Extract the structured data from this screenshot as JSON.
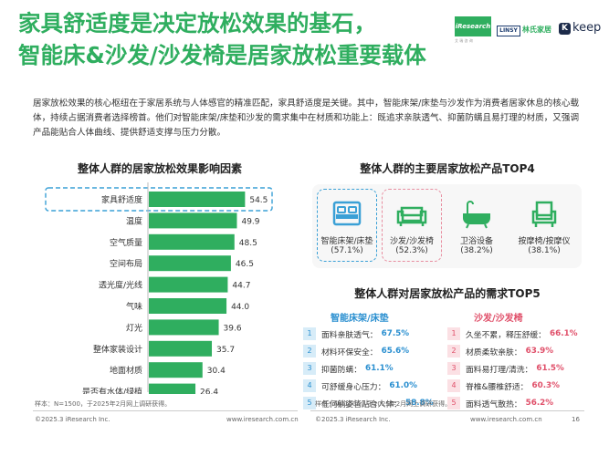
{
  "title": {
    "line1": "家具舒适度是决定放松效果的基石，",
    "line2": "智能床&沙发/沙发椅是居家放松重要载体"
  },
  "logos": {
    "iresearch": "iResearch",
    "iresearch_sub": "艾 瑞 咨 询",
    "linsy": "LINSY",
    "linshi": "林氏家居",
    "keep_k": "K",
    "keep": "keep"
  },
  "intro": "居家放松效果的核心枢纽在于家居系统与人体感官的精准匹配，家具舒适度是关键。其中，智能床架/床垫与沙发作为消费者居家休息的核心载体，持续占据消费者选择榜首。他们对智能床架/床垫和沙发的需求集中在材质和功能上：既追求亲肤透气、抑菌防螨且易打理的材质，又强调产品能贴合人体曲线、提供舒适支撑与压力分散。",
  "left_section": {
    "title": "整体人群的居家放松效果影响因素",
    "source": "样本：N=1500，于2025年2月网上调研获得。"
  },
  "chart_data": {
    "type": "bar",
    "orientation": "horizontal",
    "title": "整体人群的居家放松效果影响因素",
    "categories": [
      "家具舒适度",
      "温度",
      "空气质量",
      "空间布局",
      "透光度/光线",
      "气味",
      "灯光",
      "整体家装设计",
      "地面材质",
      "是否有水体/绿植"
    ],
    "values": [
      54.5,
      49.9,
      48.5,
      46.5,
      44.7,
      44.0,
      39.6,
      35.7,
      30.4,
      26.4
    ],
    "value_labels": [
      "54.5",
      "49.9",
      "48.5",
      "46.5",
      "44.7",
      "44.0",
      "39.6",
      "35.7",
      "30.4",
      "26.4"
    ],
    "highlight_index": 0,
    "xlim": [
      0,
      60
    ],
    "color": "#2fae5f",
    "grid": false
  },
  "top4": {
    "title": "整体人群的主要居家放松产品TOP4",
    "items": [
      {
        "label": "智能床架/床垫",
        "pct": "(57.1%)",
        "icon": "bed-icon"
      },
      {
        "label": "沙发/沙发椅",
        "pct": "(52.3%)",
        "icon": "sofa-icon"
      },
      {
        "label": "卫浴设备",
        "pct": "(38.2%)",
        "icon": "bathtub-icon"
      },
      {
        "label": "按摩椅/按摩仪",
        "pct": "(38.1%)",
        "icon": "massage-chair-icon"
      }
    ]
  },
  "top5": {
    "title": "整体人群对居家放松产品的需求TOP5",
    "bed": {
      "head": "智能床架/床垫",
      "color": "#2a8fd0",
      "rows": [
        {
          "num": "1",
          "text": "面料亲肤透气：",
          "value": "67.5%"
        },
        {
          "num": "2",
          "text": "材料环保安全：",
          "value": "65.6%"
        },
        {
          "num": "3",
          "text": "抑菌防螨：",
          "value": "61.1%"
        },
        {
          "num": "4",
          "text": "可舒缓身心压力：",
          "value": "61.0%"
        },
        {
          "num": "5",
          "text": "任何躺姿皆贴合人体：",
          "value": "58.8%"
        }
      ]
    },
    "sofa": {
      "head": "沙发/沙发椅",
      "color": "#e0506a",
      "rows": [
        {
          "num": "1",
          "text": "久坐不累，释压舒缓：",
          "value": "66.1%"
        },
        {
          "num": "2",
          "text": "材质柔软亲肤：",
          "value": "63.9%"
        },
        {
          "num": "3",
          "text": "面料易打理/清洗：",
          "value": "61.5%"
        },
        {
          "num": "4",
          "text": "脊椎&腰椎舒适：",
          "value": "60.3%"
        },
        {
          "num": "5",
          "text": "面料透气散热：",
          "value": "56.2%"
        }
      ]
    },
    "source": "样本：N=1500，于2025年2月网上调研获得。"
  },
  "footer": {
    "copyright_left": "©2025.3 iResearch Inc.",
    "site_left": "www.iresearch.com.cn",
    "copyright_right": "©2025.3 iResearch Inc.",
    "site_right": "www.iresearch.com.cn",
    "page": "16"
  }
}
